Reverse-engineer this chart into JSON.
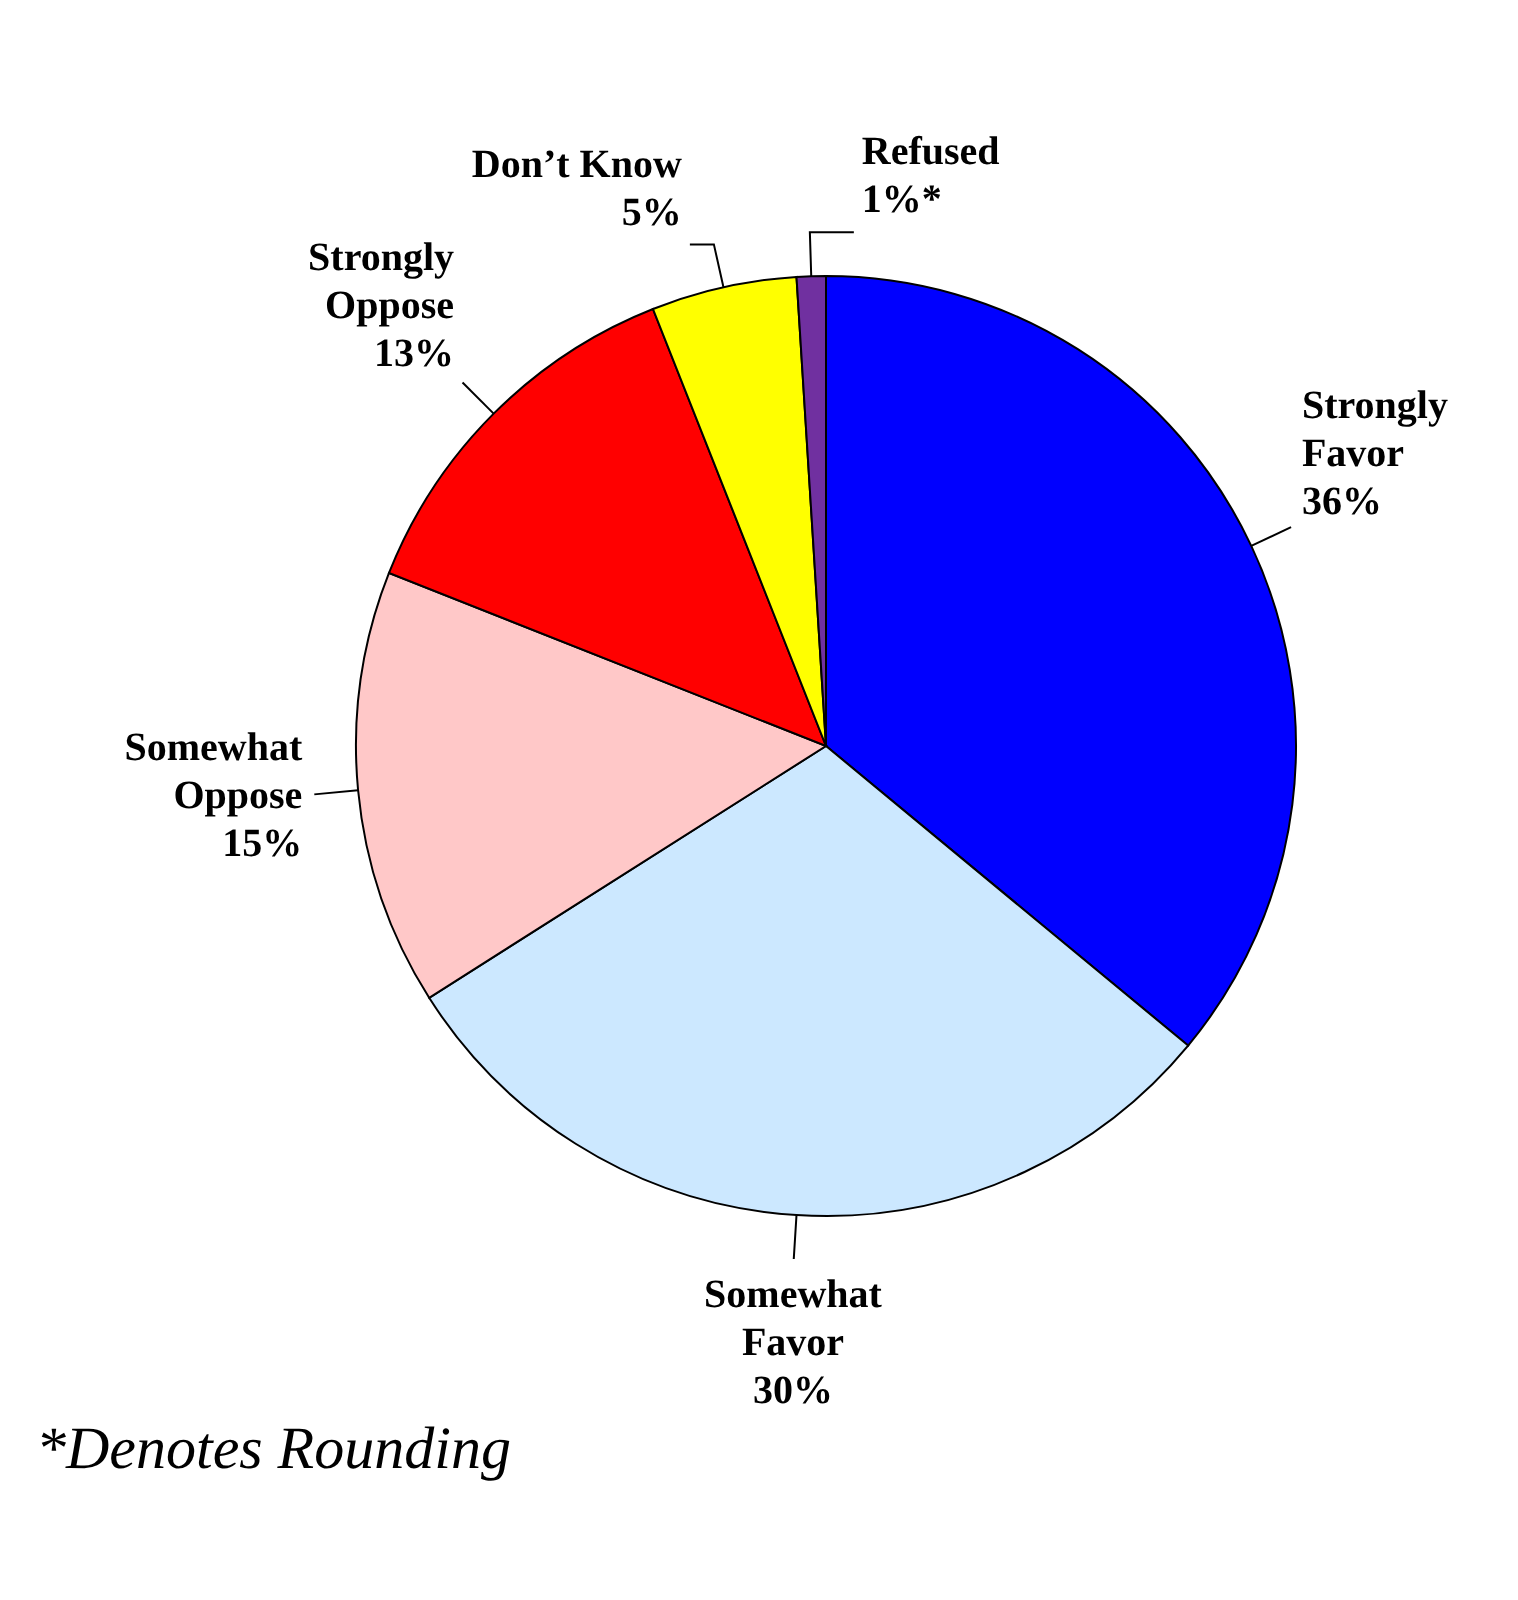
{
  "chart_data": {
    "type": "pie",
    "categories": [
      "Strongly Favor",
      "Somewhat Favor",
      "Somewhat Oppose",
      "Strongly Oppose",
      "Don’t Know",
      "Refused"
    ],
    "values": [
      36,
      30,
      15,
      13,
      5,
      1
    ],
    "value_labels": [
      "36%",
      "30%",
      "15%",
      "13%",
      "5%",
      "1%*"
    ],
    "colors": [
      "#0000ff",
      "#cce8ff",
      "#ffc8c8",
      "#ff0000",
      "#ffff00",
      "#7030a0"
    ],
    "annotations": [
      "*Denotes Rounding"
    ]
  }
}
